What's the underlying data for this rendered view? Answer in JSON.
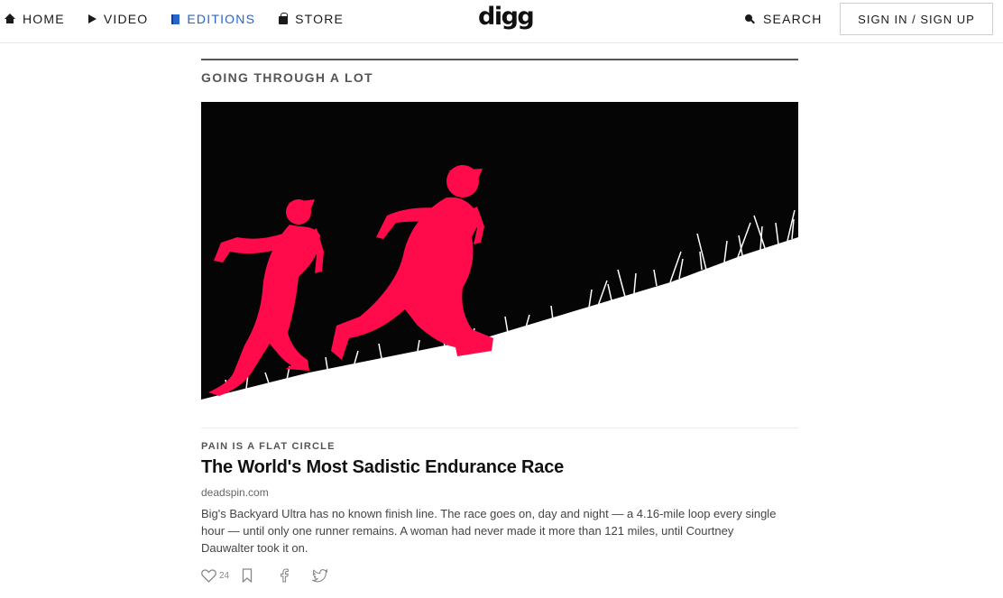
{
  "nav": {
    "home": "HOME",
    "video": "VIDEO",
    "editions": "EDITIONS",
    "store": "STORE",
    "logo": "digg",
    "search": "SEARCH",
    "signin": "SIGN IN / SIGN UP",
    "icons": [
      "home-icon",
      "play-icon",
      "editions-icon",
      "store-bag-icon",
      "search-icon"
    ],
    "active_color": "#2766c8"
  },
  "section": {
    "title": "GOING THROUGH A LOT"
  },
  "article": {
    "image_description_colors": {
      "background": "#050505",
      "runners": "#ff0a4a",
      "ground": "#ffffff"
    },
    "kicker": "PAIN IS A FLAT CIRCLE",
    "headline": "The World's Most Sadistic Endurance Race",
    "source": "deadspin.com",
    "description": "Big's Backyard Ultra has no known finish line. The race goes on, day and night — a 4.16-mile loop every single hour — until only one runner remains. A woman had never made it more than 121 miles, until Courtney Dauwalter took it on.",
    "like_count": "24",
    "action_icons": [
      "heart-icon",
      "bookmark-icon",
      "facebook-icon",
      "twitter-icon"
    ]
  }
}
